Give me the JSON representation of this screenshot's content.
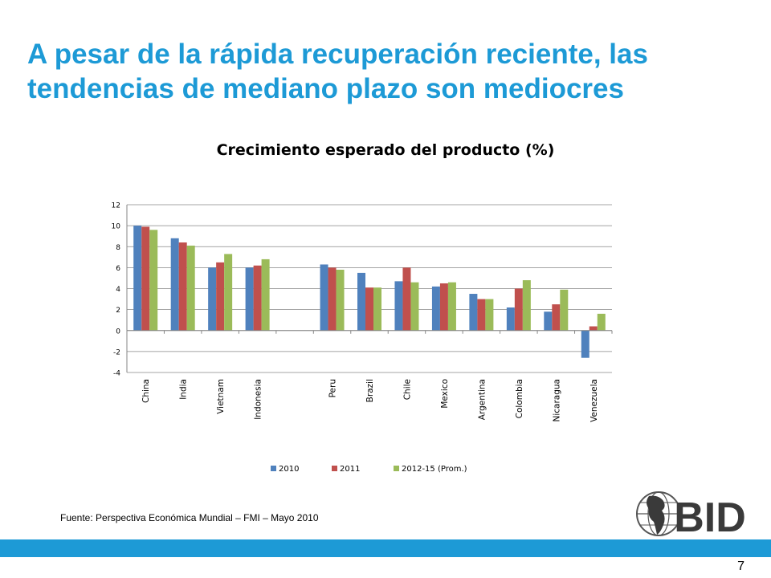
{
  "slide": {
    "title_line1": "A pesar de la rápida recuperación reciente, las",
    "title_line2": "tendencias de mediano plazo son mediocres",
    "source": "Fuente: Perspectiva Económica Mundial – FMI – Mayo 2010",
    "page_number": "7",
    "logo_text": "BID",
    "accent_color": "#1d9ad6"
  },
  "chart_data": {
    "type": "bar",
    "title": "Crecimiento esperado del producto (%)",
    "categories": [
      "China",
      "India",
      "Vietnam",
      "Indonesia",
      "",
      "Peru",
      "Brazil",
      "Chile",
      "Mexico",
      "Argentina",
      "Colombia",
      "Nicaragua",
      "Venezuela"
    ],
    "series": [
      {
        "name": "2010",
        "color": "#4f81bd",
        "values": [
          10.0,
          8.8,
          6.0,
          6.0,
          null,
          6.3,
          5.5,
          4.7,
          4.2,
          3.5,
          2.2,
          1.8,
          -2.6
        ]
      },
      {
        "name": "2011",
        "color": "#c0504d",
        "values": [
          9.9,
          8.4,
          6.5,
          6.2,
          null,
          6.0,
          4.1,
          6.0,
          4.5,
          3.0,
          4.0,
          2.5,
          0.4
        ]
      },
      {
        "name": "2012-15 (Prom.)",
        "color": "#9bbb59",
        "values": [
          9.6,
          8.1,
          7.3,
          6.8,
          null,
          5.8,
          4.1,
          4.6,
          4.6,
          3.0,
          4.8,
          3.9,
          1.6
        ]
      }
    ],
    "ylim": [
      -4,
      12
    ],
    "yticks": [
      -4,
      -2,
      0,
      2,
      4,
      6,
      8,
      10,
      12
    ],
    "grid": true,
    "legend": "bottom"
  }
}
